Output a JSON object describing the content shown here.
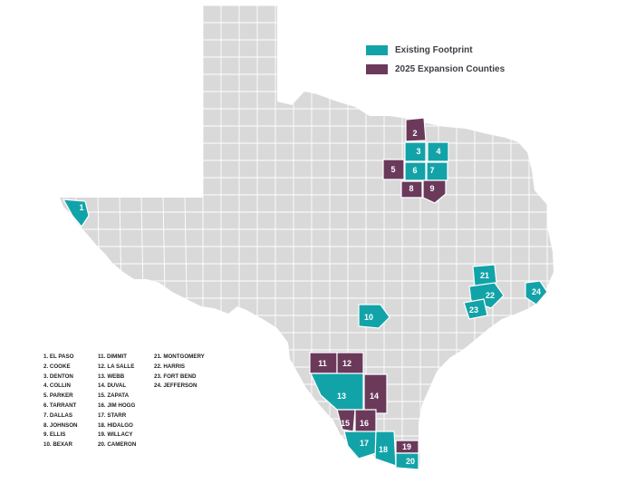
{
  "colors": {
    "background": "#ffffff",
    "state_fill": "#d9d9d9",
    "county_lines": "#ffffff",
    "existing": "#12a3a8",
    "expansion": "#6b3a5b"
  },
  "legend": {
    "existing_label": "Existing Footprint",
    "expansion_label": "2025 Expansion Counties"
  },
  "counties": [
    {
      "num": "1",
      "status": "existing"
    },
    {
      "num": "2",
      "status": "expansion"
    },
    {
      "num": "3",
      "status": "existing"
    },
    {
      "num": "4",
      "status": "existing"
    },
    {
      "num": "5",
      "status": "expansion"
    },
    {
      "num": "6",
      "status": "existing"
    },
    {
      "num": "7",
      "status": "existing"
    },
    {
      "num": "8",
      "status": "expansion"
    },
    {
      "num": "9",
      "status": "expansion"
    },
    {
      "num": "10",
      "status": "existing"
    },
    {
      "num": "11",
      "status": "expansion"
    },
    {
      "num": "12",
      "status": "expansion"
    },
    {
      "num": "13",
      "status": "existing"
    },
    {
      "num": "14",
      "status": "expansion"
    },
    {
      "num": "15",
      "status": "expansion"
    },
    {
      "num": "16",
      "status": "expansion"
    },
    {
      "num": "17",
      "status": "existing"
    },
    {
      "num": "18",
      "status": "existing"
    },
    {
      "num": "19",
      "status": "expansion"
    },
    {
      "num": "20",
      "status": "existing"
    },
    {
      "num": "21",
      "status": "existing"
    },
    {
      "num": "22",
      "status": "existing"
    },
    {
      "num": "23",
      "status": "existing"
    },
    {
      "num": "24",
      "status": "existing"
    }
  ],
  "county_list": {
    "col1": [
      "1. EL PASO",
      "2. COOKE",
      "3. DENTON",
      "4. COLLIN",
      "5. PARKER",
      "6. TARRANT",
      "7. DALLAS",
      "8. JOHNSON",
      "9. ELLIS",
      "10. BEXAR"
    ],
    "col2": [
      "11. DIMMIT",
      "12. LA SALLE",
      "13. WEBB",
      "14. DUVAL",
      "15. ZAPATA",
      "16. JIM HOGG",
      "17. STARR",
      "18. HIDALGO",
      "19. WILLACY",
      "20. CAMERON"
    ],
    "col3": [
      "21. MONTGOMERY",
      "22. HARRIS",
      "23. FORT BEND",
      "24. JEFFERSON"
    ]
  }
}
